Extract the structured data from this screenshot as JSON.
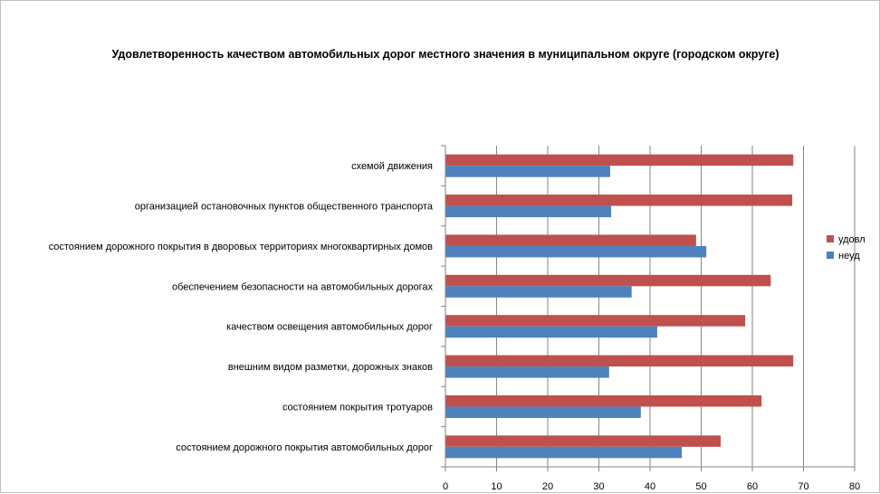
{
  "chart_data": {
    "type": "bar",
    "orientation": "horizontal",
    "title": "Удовлетворенность качеством автомобильных дорог местного значения в муниципальном округе (городском округе)",
    "xlabel": "",
    "ylabel": "",
    "xlim": [
      0,
      80
    ],
    "ticks": [
      0,
      10,
      20,
      30,
      40,
      50,
      60,
      70,
      80
    ],
    "grid": true,
    "legend_position": "right",
    "categories": [
      "схемой движения",
      "организацией остановочных пунктов общественного транспорта",
      "состоянием дорожного покрытия в дворовых территориях многоквартирных домов",
      "обеспечением безопасности на автомобильных дорогах",
      "качеством освещения автомобильных дорог",
      "внешним видом разметки, дорожных знаков",
      "состоянием покрытия тротуаров",
      "состоянием дорожного покрытия автомобильных дорог"
    ],
    "series": [
      {
        "name": "удовл",
        "color": "#c0504d",
        "values": [
          68,
          67.8,
          49,
          63.6,
          58.6,
          68,
          61.8,
          53.8
        ]
      },
      {
        "name": "неуд",
        "color": "#4f81bd",
        "values": [
          32.2,
          32.4,
          51,
          36.4,
          41.4,
          32,
          38.2,
          46.2
        ]
      }
    ]
  }
}
